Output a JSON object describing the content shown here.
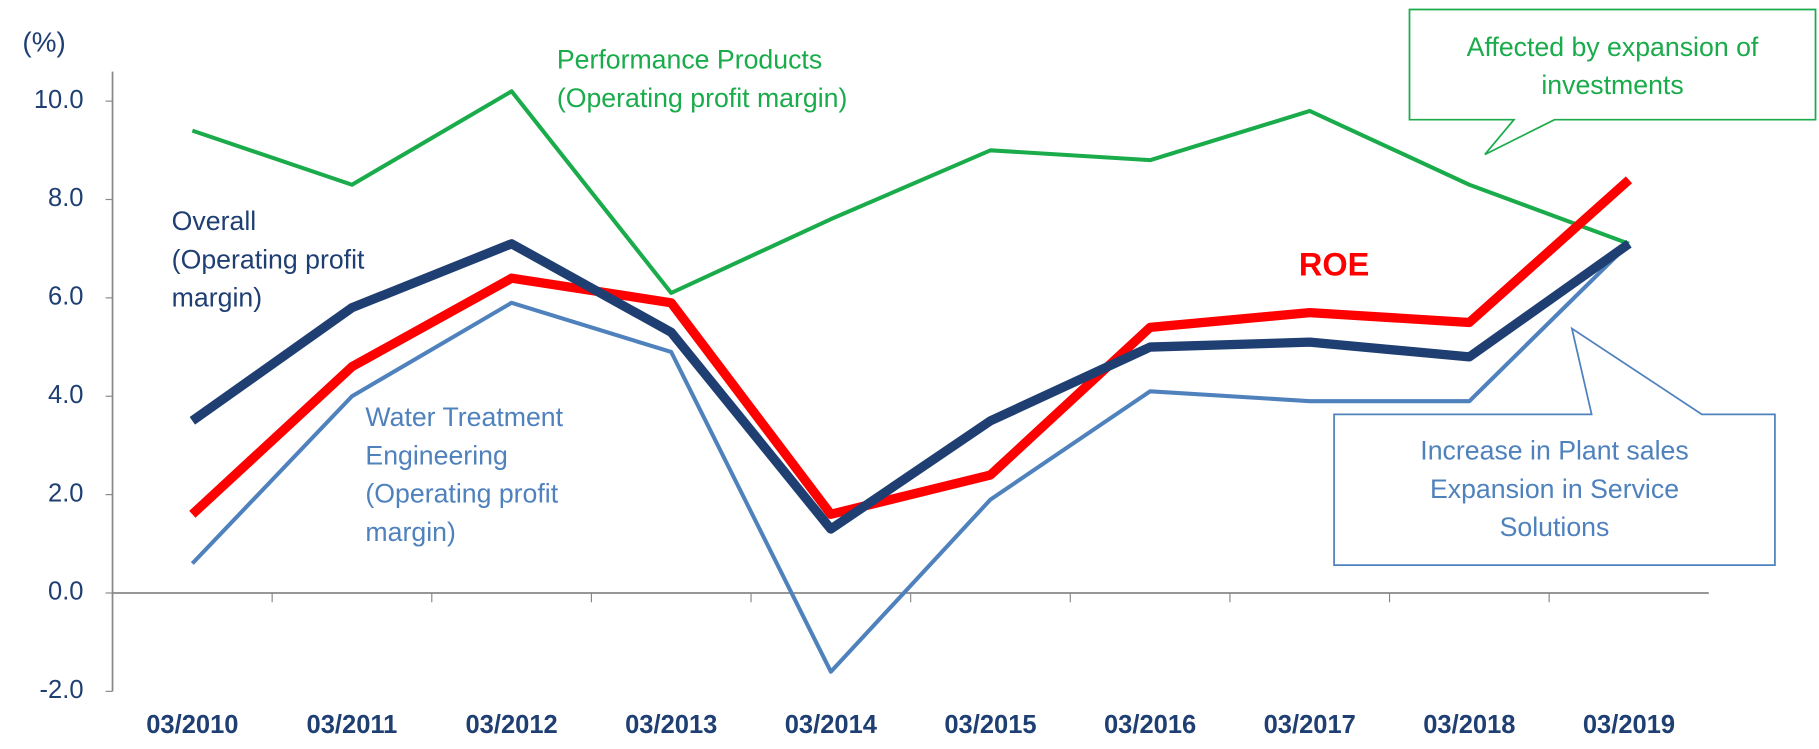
{
  "chart_data": {
    "type": "line",
    "y_unit": "(%)",
    "categories": [
      "03/2010",
      "03/2011",
      "03/2012",
      "03/2013",
      "03/2014",
      "03/2015",
      "03/2016",
      "03/2017",
      "03/2018",
      "03/2019"
    ],
    "ylim": [
      -2,
      10.6
    ],
    "yticks": [
      {
        "value": -2,
        "label": "-2.0"
      },
      {
        "value": 0,
        "label": "0.0"
      },
      {
        "value": 2,
        "label": "2.0"
      },
      {
        "value": 4,
        "label": "4.0"
      },
      {
        "value": 6,
        "label": "6.0"
      },
      {
        "value": 8,
        "label": "8.0"
      },
      {
        "value": 10,
        "label": "10.0"
      }
    ],
    "series": [
      {
        "label": [
          "Performance Products",
          "(Operating profit margin)"
        ],
        "color": "#1aab4b",
        "width": 3.5,
        "label_color": "#1aab4b",
        "values": [
          9.4,
          8.3,
          10.2,
          6.1,
          7.6,
          9.0,
          8.8,
          9.8,
          8.3,
          7.1
        ]
      },
      {
        "label": [
          "Water Treatment",
          "Engineering",
          "(Operating profit",
          "margin)"
        ],
        "color": "#4f81bd",
        "width": 3.5,
        "label_color": "#4f81bd",
        "values": [
          0.6,
          4.0,
          5.9,
          4.9,
          -1.6,
          1.9,
          4.1,
          3.9,
          3.9,
          7.1
        ]
      },
      {
        "label": [
          "ROE"
        ],
        "color": "#ff0000",
        "width": 8,
        "label_color": "#ff0000",
        "values": [
          1.6,
          4.6,
          6.4,
          5.9,
          1.6,
          2.4,
          5.4,
          5.7,
          5.5,
          8.4
        ]
      },
      {
        "label": [
          "Overall",
          "(Operating profit",
          "margin)"
        ],
        "color": "#1f3f73",
        "width": 8,
        "label_color": "#1f3f73",
        "values": [
          3.5,
          5.8,
          7.1,
          5.3,
          1.3,
          3.5,
          5.0,
          5.1,
          4.8,
          7.1
        ]
      }
    ],
    "annotations": [
      {
        "text": [
          "Affected by expansion of",
          "investments"
        ],
        "color": "#1aab4b"
      },
      {
        "text": [
          "Increase in Plant sales",
          "Expansion in Service",
          "Solutions"
        ],
        "color": "#4f81bd"
      }
    ]
  }
}
